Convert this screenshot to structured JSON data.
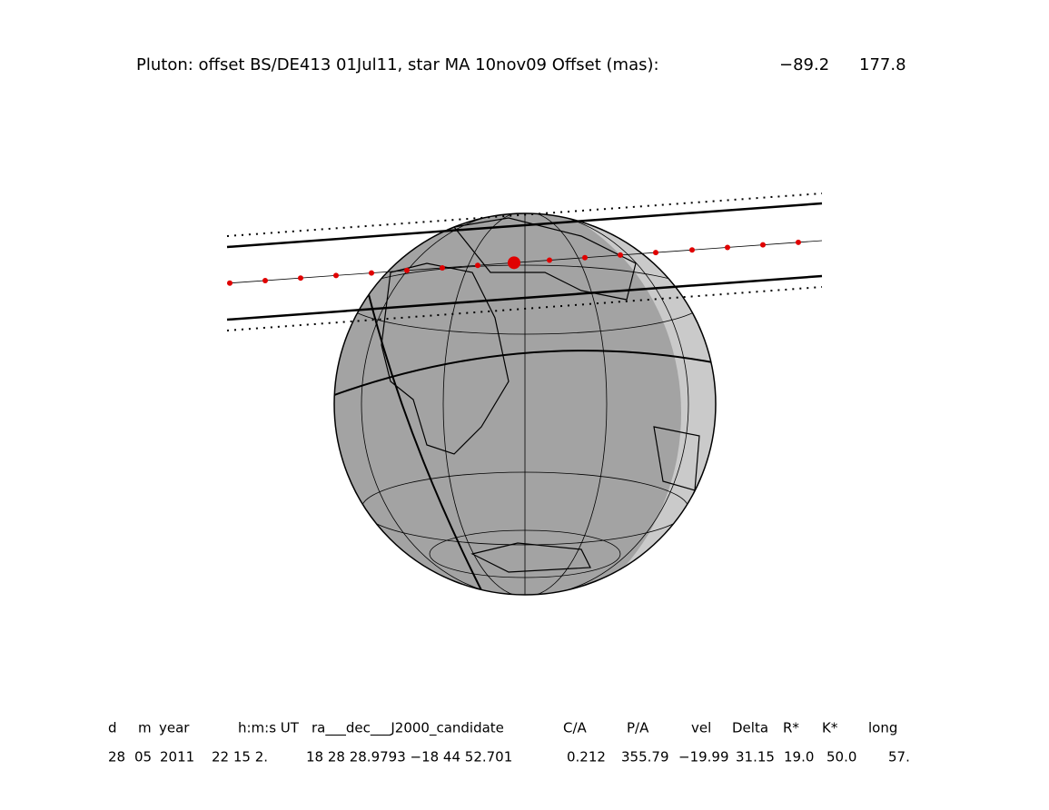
{
  "header": {
    "title": "Pluton: offset BS/DE413 01Jul11, star MA 10nov09  Offset (mas):",
    "offset_x": "−89.2",
    "offset_y": "177.8"
  },
  "table": {
    "columns": [
      "d",
      "m",
      "year",
      "h:m:s UT",
      "ra___dec___J2000_candidate",
      "C/A",
      "P/A",
      "vel",
      "Delta",
      "R*",
      "K*",
      "long"
    ],
    "row": [
      "28",
      "05",
      "2011",
      "22 15  2.",
      "18 28 28.9793 −18 44  52.701",
      "0.212",
      "355.79",
      "−19.99",
      "31.15",
      "19.0",
      "50.0",
      "57."
    ]
  }
}
